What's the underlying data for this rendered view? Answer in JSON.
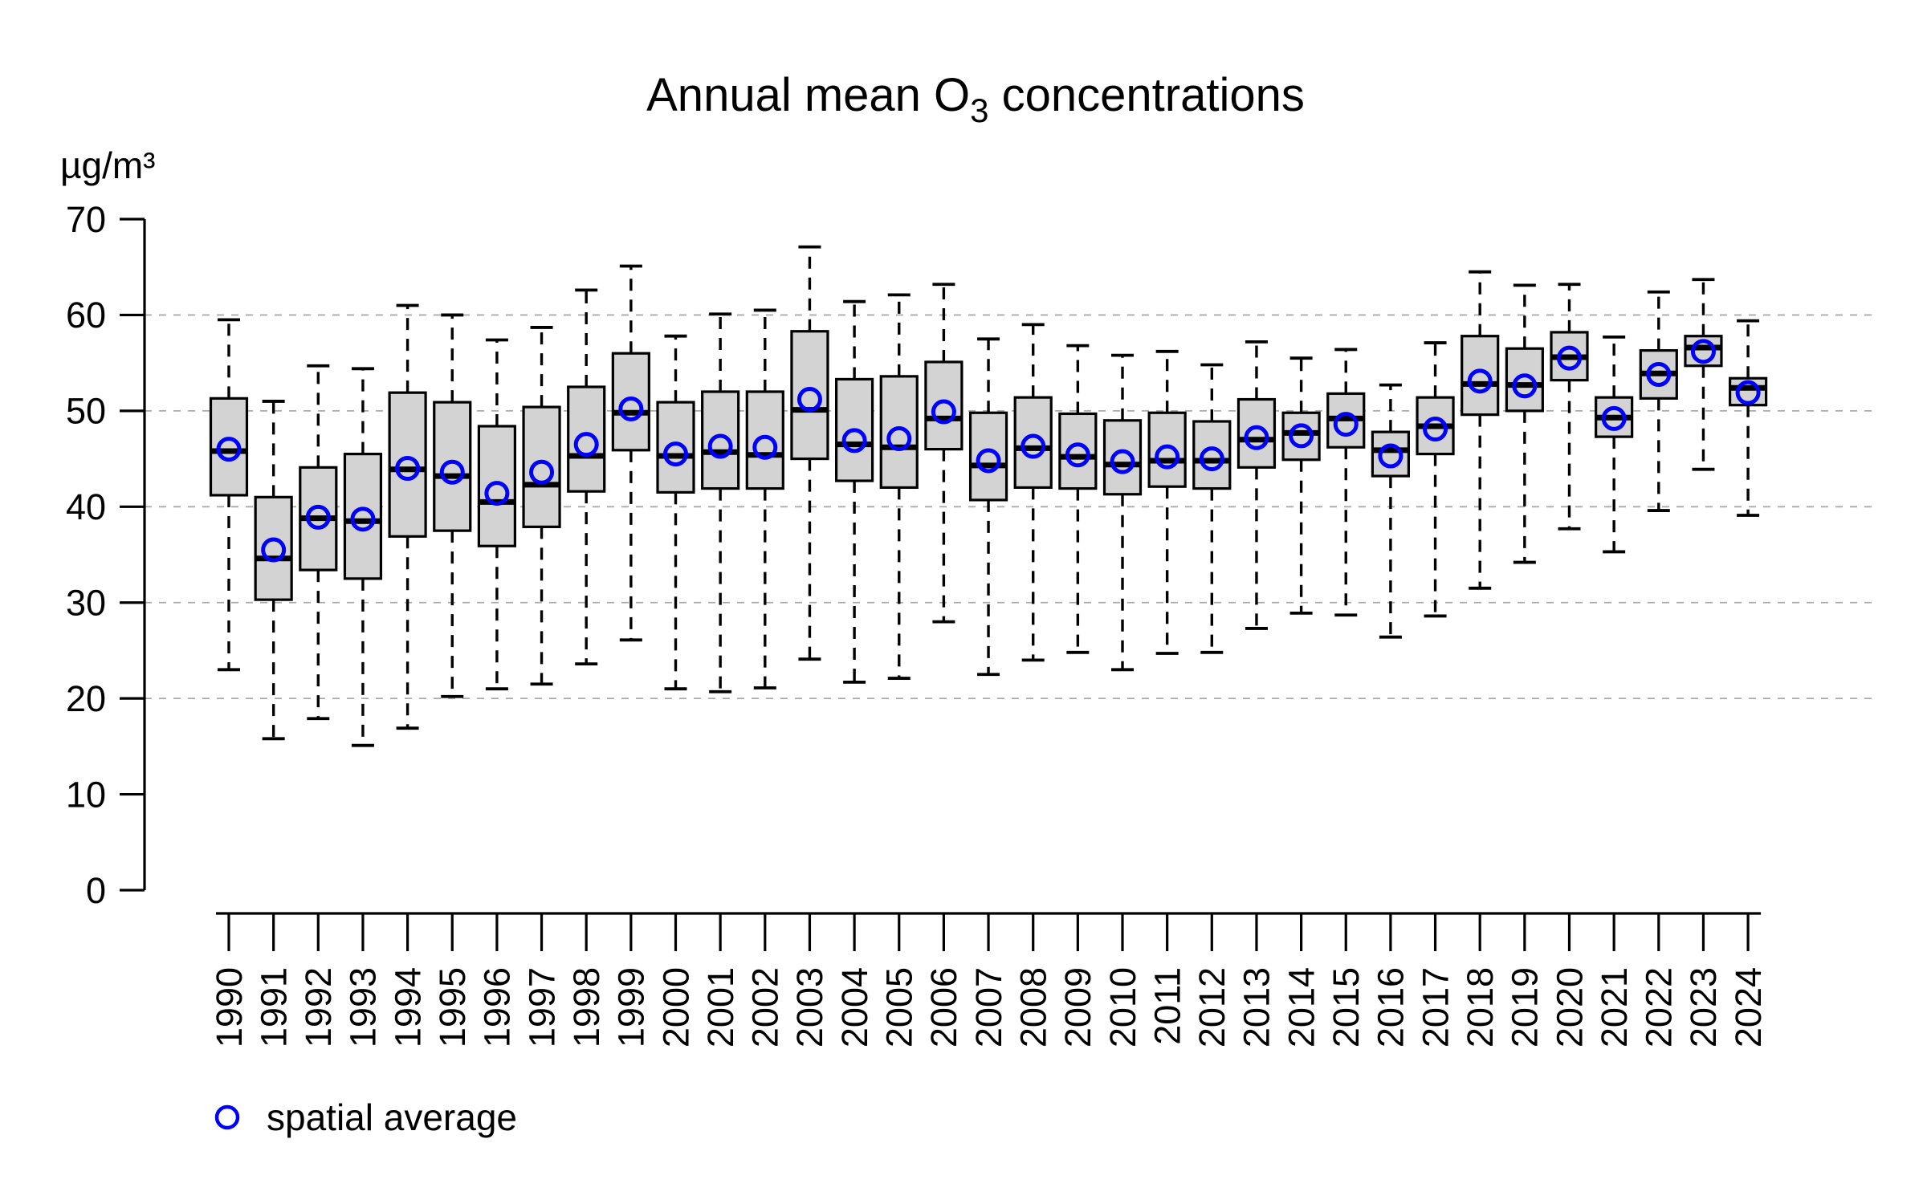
{
  "chart_data": {
    "type": "boxplot",
    "title": "Annual mean O3 concentrations",
    "title_parts": {
      "prefix": "Annual mean O",
      "subscript": "3",
      "suffix": " concentrations"
    },
    "ylabel": "µg/m³",
    "legend_label": "spatial average",
    "legend_position": "bottom-left",
    "ylim": [
      0,
      70
    ],
    "yticks": [
      0,
      10,
      20,
      30,
      40,
      50,
      60,
      70
    ],
    "gridlines_at": [
      20,
      30,
      40,
      50,
      60
    ],
    "grid": "dashed-horizontal",
    "colors": {
      "box_fill": "#d3d3d3",
      "box_border": "#000000",
      "median": "#000000",
      "whisker": "#000000",
      "mean_marker": "#0000ff",
      "gridline": "#ababab",
      "background": "#ffffff"
    },
    "categories": [
      "1990",
      "1991",
      "1992",
      "1993",
      "1994",
      "1995",
      "1996",
      "1997",
      "1998",
      "1999",
      "2000",
      "2001",
      "2002",
      "2003",
      "2004",
      "2005",
      "2006",
      "2007",
      "2008",
      "2009",
      "2010",
      "2011",
      "2012",
      "2013",
      "2014",
      "2015",
      "2016",
      "2017",
      "2018",
      "2019",
      "2020",
      "2021",
      "2022",
      "2023",
      "2024"
    ],
    "series": [
      {
        "year": "1990",
        "low": 23.0,
        "q1": 41.2,
        "median": 45.8,
        "q3": 51.3,
        "high": 59.5,
        "mean": 46.0
      },
      {
        "year": "1991",
        "low": 15.8,
        "q1": 30.3,
        "median": 34.6,
        "q3": 41.0,
        "high": 51.0,
        "mean": 35.5
      },
      {
        "year": "1992",
        "low": 17.9,
        "q1": 33.4,
        "median": 38.8,
        "q3": 44.1,
        "high": 54.7,
        "mean": 38.9
      },
      {
        "year": "1993",
        "low": 15.1,
        "q1": 32.5,
        "median": 38.5,
        "q3": 45.5,
        "high": 54.4,
        "mean": 38.7
      },
      {
        "year": "1994",
        "low": 16.9,
        "q1": 36.9,
        "median": 43.9,
        "q3": 51.9,
        "high": 61.0,
        "mean": 44.0
      },
      {
        "year": "1995",
        "low": 20.2,
        "q1": 37.5,
        "median": 43.2,
        "q3": 50.9,
        "high": 60.0,
        "mean": 43.6
      },
      {
        "year": "1996",
        "low": 21.0,
        "q1": 35.9,
        "median": 40.5,
        "q3": 48.4,
        "high": 57.4,
        "mean": 41.4
      },
      {
        "year": "1997",
        "low": 21.5,
        "q1": 37.9,
        "median": 42.3,
        "q3": 50.4,
        "high": 58.7,
        "mean": 43.6
      },
      {
        "year": "1998",
        "low": 23.6,
        "q1": 41.6,
        "median": 45.3,
        "q3": 52.5,
        "high": 62.6,
        "mean": 46.5
      },
      {
        "year": "1999",
        "low": 26.1,
        "q1": 45.9,
        "median": 49.8,
        "q3": 56.0,
        "high": 65.1,
        "mean": 50.2
      },
      {
        "year": "2000",
        "low": 21.0,
        "q1": 41.5,
        "median": 45.3,
        "q3": 50.9,
        "high": 57.8,
        "mean": 45.5
      },
      {
        "year": "2001",
        "low": 20.7,
        "q1": 41.9,
        "median": 45.7,
        "q3": 52.0,
        "high": 60.1,
        "mean": 46.3
      },
      {
        "year": "2002",
        "low": 21.1,
        "q1": 41.9,
        "median": 45.4,
        "q3": 52.0,
        "high": 60.5,
        "mean": 46.2
      },
      {
        "year": "2003",
        "low": 24.1,
        "q1": 45.0,
        "median": 50.1,
        "q3": 58.3,
        "high": 67.1,
        "mean": 51.2
      },
      {
        "year": "2004",
        "low": 21.7,
        "q1": 42.7,
        "median": 46.5,
        "q3": 53.3,
        "high": 61.4,
        "mean": 46.9
      },
      {
        "year": "2005",
        "low": 22.1,
        "q1": 42.0,
        "median": 46.2,
        "q3": 53.6,
        "high": 62.1,
        "mean": 47.1
      },
      {
        "year": "2006",
        "low": 28.0,
        "q1": 46.0,
        "median": 49.2,
        "q3": 55.1,
        "high": 63.2,
        "mean": 49.9
      },
      {
        "year": "2007",
        "low": 22.5,
        "q1": 40.7,
        "median": 44.3,
        "q3": 49.8,
        "high": 57.5,
        "mean": 44.8
      },
      {
        "year": "2008",
        "low": 24.0,
        "q1": 42.0,
        "median": 46.1,
        "q3": 51.4,
        "high": 59.0,
        "mean": 46.3
      },
      {
        "year": "2009",
        "low": 24.8,
        "q1": 41.9,
        "median": 45.2,
        "q3": 49.7,
        "high": 56.8,
        "mean": 45.4
      },
      {
        "year": "2010",
        "low": 23.0,
        "q1": 41.3,
        "median": 44.4,
        "q3": 49.0,
        "high": 55.8,
        "mean": 44.7
      },
      {
        "year": "2011",
        "low": 24.7,
        "q1": 42.1,
        "median": 44.8,
        "q3": 49.8,
        "high": 56.2,
        "mean": 45.2
      },
      {
        "year": "2012",
        "low": 24.8,
        "q1": 41.9,
        "median": 44.8,
        "q3": 48.9,
        "high": 54.8,
        "mean": 45.0
      },
      {
        "year": "2013",
        "low": 27.3,
        "q1": 44.1,
        "median": 47.0,
        "q3": 51.2,
        "high": 57.2,
        "mean": 47.2
      },
      {
        "year": "2014",
        "low": 28.9,
        "q1": 44.9,
        "median": 47.7,
        "q3": 49.8,
        "high": 55.5,
        "mean": 47.4
      },
      {
        "year": "2015",
        "low": 28.7,
        "q1": 46.2,
        "median": 49.2,
        "q3": 51.8,
        "high": 56.4,
        "mean": 48.6
      },
      {
        "year": "2016",
        "low": 26.4,
        "q1": 43.2,
        "median": 45.9,
        "q3": 47.8,
        "high": 52.7,
        "mean": 45.3
      },
      {
        "year": "2017",
        "low": 28.6,
        "q1": 45.5,
        "median": 48.4,
        "q3": 51.4,
        "high": 57.1,
        "mean": 48.1
      },
      {
        "year": "2018",
        "low": 31.5,
        "q1": 49.6,
        "median": 52.8,
        "q3": 57.8,
        "high": 64.5,
        "mean": 53.1
      },
      {
        "year": "2019",
        "low": 34.2,
        "q1": 50.0,
        "median": 52.7,
        "q3": 56.5,
        "high": 63.1,
        "mean": 52.6
      },
      {
        "year": "2020",
        "low": 37.7,
        "q1": 53.2,
        "median": 55.6,
        "q3": 58.2,
        "high": 63.2,
        "mean": 55.5
      },
      {
        "year": "2021",
        "low": 35.3,
        "q1": 47.3,
        "median": 49.3,
        "q3": 51.4,
        "high": 57.7,
        "mean": 49.2
      },
      {
        "year": "2022",
        "low": 39.6,
        "q1": 51.3,
        "median": 53.9,
        "q3": 56.3,
        "high": 62.4,
        "mean": 53.8
      },
      {
        "year": "2023",
        "low": 43.9,
        "q1": 54.7,
        "median": 56.6,
        "q3": 57.8,
        "high": 63.7,
        "mean": 56.2
      },
      {
        "year": "2024",
        "low": 39.1,
        "q1": 50.6,
        "median": 52.4,
        "q3": 53.4,
        "high": 59.4,
        "mean": 51.9
      }
    ]
  }
}
